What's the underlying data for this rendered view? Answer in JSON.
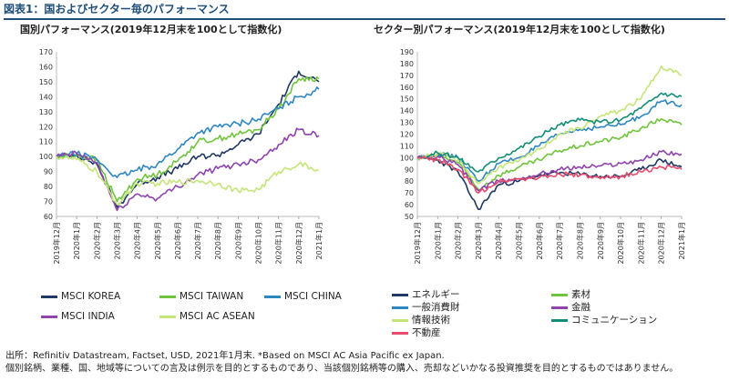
{
  "figure_title": "図表1：国およびセクター毎のパフォーマンス",
  "source_lines": [
    "出所：Refinitiv Datastream, Factset, USD, 2021年1月末. *Based on MSCI AC Asia Pacific ex Japan.",
    "個別銘柄、業種、国、地域等についての言及は例示を目的とするものであり、当該個別銘柄等の購入、売却などいかなる投資推奨を目的とするものではありません。"
  ],
  "chart_data": [
    {
      "type": "line",
      "title": "国別パフォーマンス(2019年12月末を100として指数化)",
      "categories": [
        "2019年12月",
        "2020年1月",
        "2020年2月",
        "2020年3月",
        "2020年4月",
        "2020年5月",
        "2020年6月",
        "2020年7月",
        "2020年8月",
        "2020年9月",
        "2020年10月",
        "2020年11月",
        "2020年12月",
        "2021年1月"
      ],
      "ylim": [
        60,
        170
      ],
      "yticks": [
        60,
        70,
        80,
        90,
        100,
        110,
        120,
        130,
        140,
        150,
        160,
        170
      ],
      "series": [
        {
          "name": "MSCI KOREA",
          "color": "#1f3864",
          "values": [
            100,
            101,
            95,
            66,
            82,
            86,
            92,
            100,
            101,
            108,
            115,
            135,
            157,
            150
          ]
        },
        {
          "name": "MSCI TAIWAN",
          "color": "#70c43c",
          "values": [
            100,
            101,
            98,
            70,
            85,
            88,
            97,
            110,
            112,
            115,
            118,
            132,
            152,
            152
          ]
        },
        {
          "name": "MSCI CHINA",
          "color": "#2e86c1",
          "values": [
            100,
            102,
            98,
            86,
            91,
            95,
            105,
            116,
            120,
            122,
            125,
            132,
            140,
            145
          ]
        },
        {
          "name": "MSCI INDIA",
          "color": "#8e44ad",
          "values": [
            100,
            102,
            96,
            64,
            75,
            72,
            80,
            88,
            92,
            95,
            98,
            108,
            118,
            114
          ]
        },
        {
          "name": "MSCI AC ASEAN",
          "color": "#c5e57a",
          "values": [
            100,
            98,
            90,
            68,
            82,
            82,
            83,
            84,
            82,
            77,
            78,
            90,
            95,
            91
          ]
        }
      ]
    },
    {
      "type": "line",
      "title": "セクター別パフォーマンス(2019年12月末を100として指数化)",
      "categories": [
        "2019年12月",
        "2020年1月",
        "2020年2月",
        "2020年3月",
        "2020年4月",
        "2020年5月",
        "2020年6月",
        "2020年7月",
        "2020年8月",
        "2020年9月",
        "2020年10月",
        "2020年11月",
        "2020年12月",
        "2021年1月"
      ],
      "ylim": [
        50,
        190
      ],
      "yticks": [
        50,
        60,
        70,
        80,
        90,
        100,
        110,
        120,
        130,
        140,
        150,
        160,
        170,
        180,
        190
      ],
      "series": [
        {
          "name": "エネルギー",
          "color": "#1f3864",
          "values": [
            100,
            98,
            88,
            56,
            77,
            80,
            85,
            87,
            86,
            84,
            84,
            90,
            98,
            92
          ]
        },
        {
          "name": "素材",
          "color": "#70c43c",
          "values": [
            100,
            102,
            96,
            73,
            85,
            92,
            98,
            106,
            110,
            114,
            117,
            125,
            133,
            128
          ]
        },
        {
          "name": "一般消費財",
          "color": "#2e86c1",
          "values": [
            100,
            103,
            100,
            80,
            95,
            100,
            110,
            120,
            124,
            126,
            128,
            135,
            148,
            145
          ]
        },
        {
          "name": "金融",
          "color": "#8e44ad",
          "values": [
            100,
            101,
            94,
            72,
            80,
            82,
            86,
            90,
            92,
            93,
            95,
            98,
            105,
            103
          ]
        },
        {
          "name": "情報技術",
          "color": "#c5e57a",
          "values": [
            100,
            103,
            98,
            78,
            92,
            97,
            107,
            120,
            125,
            135,
            140,
            150,
            178,
            170
          ]
        },
        {
          "name": "コミュニケーション",
          "color": "#138d75",
          "values": [
            100,
            104,
            100,
            88,
            100,
            108,
            118,
            128,
            132,
            130,
            132,
            142,
            155,
            152
          ]
        },
        {
          "name": "不動産",
          "color": "#e74c6c",
          "values": [
            100,
            98,
            90,
            70,
            80,
            82,
            83,
            86,
            85,
            82,
            84,
            88,
            92,
            90
          ]
        }
      ]
    }
  ]
}
